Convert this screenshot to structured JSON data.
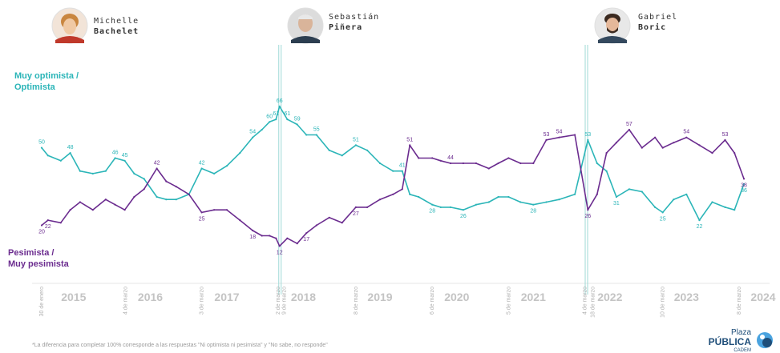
{
  "presidents": [
    {
      "first": "Michelle",
      "last": "Bachelet"
    },
    {
      "first": "Sebastián",
      "last": "Piñera"
    },
    {
      "first": "Gabriel",
      "last": "Boric"
    }
  ],
  "footnote": "*La diferencia para completar 100% corresponde a las respuestas \"Ni optimista ni pesimista\" y \"No sabe, no responde\"",
  "brand": {
    "line1": "Plaza",
    "line2": "PÚBLICA",
    "line3": "CADEM"
  },
  "colors": {
    "optimista": "#2bb5b8",
    "pesimista": "#6b2c8f",
    "divider": "#9fd9d6"
  },
  "chart_data": {
    "type": "line",
    "xlabel": "",
    "ylabel": "",
    "ylim": [
      5,
      70
    ],
    "x_range": [
      "2015-01-30",
      "2024-03-31"
    ],
    "years": [
      "2015",
      "2016",
      "2017",
      "2018",
      "2019",
      "2020",
      "2021",
      "2022",
      "2023",
      "2024"
    ],
    "date_markers": [
      {
        "label": "30 de enero",
        "date": "2015-01-30"
      },
      {
        "label": "4 de marzo",
        "date": "2016-03-04"
      },
      {
        "label": "3 de marzo",
        "date": "2017-03-03"
      },
      {
        "label": "2 de marzo",
        "date": "2018-03-02"
      },
      {
        "label": "9 de marzo",
        "date": "2018-03-09"
      },
      {
        "label": "8 de marzo",
        "date": "2019-03-08"
      },
      {
        "label": "6 de marzo",
        "date": "2020-03-06"
      },
      {
        "label": "5 de marzo",
        "date": "2021-03-05"
      },
      {
        "label": "4 de marzo",
        "date": "2022-03-04"
      },
      {
        "label": "18 de marzo",
        "date": "2022-03-18"
      },
      {
        "label": "10 de marzo",
        "date": "2023-03-10"
      },
      {
        "label": "8 de marzo",
        "date": "2024-03-08"
      }
    ],
    "transitions": [
      "2018-03-11",
      "2022-03-11"
    ],
    "series": [
      {
        "name": "Muy optimista / Optimista",
        "color": "#2bb5b8",
        "points": [
          [
            "2015-01-30",
            50
          ],
          [
            "2015-03-01",
            47
          ],
          [
            "2015-05-01",
            45
          ],
          [
            "2015-06-15",
            48
          ],
          [
            "2015-08-01",
            41
          ],
          [
            "2015-10-01",
            40
          ],
          [
            "2015-12-01",
            41
          ],
          [
            "2016-01-15",
            46
          ],
          [
            "2016-03-01",
            45
          ],
          [
            "2016-04-15",
            40
          ],
          [
            "2016-06-01",
            38
          ],
          [
            "2016-08-01",
            31
          ],
          [
            "2016-09-15",
            30
          ],
          [
            "2016-11-01",
            30
          ],
          [
            "2017-01-01",
            32
          ],
          [
            "2017-03-03",
            42
          ],
          [
            "2017-05-01",
            40
          ],
          [
            "2017-07-01",
            43
          ],
          [
            "2017-09-01",
            48
          ],
          [
            "2017-11-01",
            54
          ],
          [
            "2017-12-15",
            57
          ],
          [
            "2018-01-20",
            60
          ],
          [
            "2018-02-20",
            61
          ],
          [
            "2018-03-09",
            66
          ],
          [
            "2018-04-15",
            61
          ],
          [
            "2018-06-01",
            59
          ],
          [
            "2018-07-15",
            55
          ],
          [
            "2018-09-01",
            55
          ],
          [
            "2018-11-01",
            49
          ],
          [
            "2019-01-01",
            47
          ],
          [
            "2019-03-08",
            51
          ],
          [
            "2019-05-01",
            49
          ],
          [
            "2019-07-01",
            44
          ],
          [
            "2019-09-01",
            41
          ],
          [
            "2019-10-15",
            41
          ],
          [
            "2019-11-20",
            32
          ],
          [
            "2020-01-01",
            31
          ],
          [
            "2020-03-06",
            28
          ],
          [
            "2020-04-15",
            27
          ],
          [
            "2020-06-01",
            27
          ],
          [
            "2020-08-01",
            26
          ],
          [
            "2020-10-01",
            28
          ],
          [
            "2020-12-01",
            29
          ],
          [
            "2021-01-15",
            31
          ],
          [
            "2021-03-05",
            31
          ],
          [
            "2021-05-01",
            29
          ],
          [
            "2021-07-01",
            28
          ],
          [
            "2021-09-01",
            29
          ],
          [
            "2021-11-01",
            30
          ],
          [
            "2022-01-15",
            32
          ],
          [
            "2022-03-18",
            53
          ],
          [
            "2022-05-01",
            44
          ],
          [
            "2022-06-15",
            41
          ],
          [
            "2022-08-01",
            31
          ],
          [
            "2022-10-01",
            34
          ],
          [
            "2022-12-01",
            33
          ],
          [
            "2023-02-01",
            27
          ],
          [
            "2023-03-10",
            25
          ],
          [
            "2023-05-01",
            30
          ],
          [
            "2023-07-01",
            32
          ],
          [
            "2023-09-01",
            22
          ],
          [
            "2023-11-01",
            29
          ],
          [
            "2024-01-01",
            27
          ],
          [
            "2024-02-15",
            26
          ],
          [
            "2024-03-31",
            36
          ]
        ]
      },
      {
        "name": "Pesimista / Muy pesimista",
        "color": "#6b2c8f",
        "points": [
          [
            "2015-01-30",
            20
          ],
          [
            "2015-03-01",
            22
          ],
          [
            "2015-05-01",
            21
          ],
          [
            "2015-06-15",
            26
          ],
          [
            "2015-08-01",
            29
          ],
          [
            "2015-10-01",
            26
          ],
          [
            "2015-12-01",
            30
          ],
          [
            "2016-01-15",
            28
          ],
          [
            "2016-03-01",
            26
          ],
          [
            "2016-04-15",
            31
          ],
          [
            "2016-06-01",
            34
          ],
          [
            "2016-08-01",
            42
          ],
          [
            "2016-09-15",
            37
          ],
          [
            "2016-11-01",
            35
          ],
          [
            "2017-01-01",
            32
          ],
          [
            "2017-03-03",
            25
          ],
          [
            "2017-05-01",
            26
          ],
          [
            "2017-07-01",
            26
          ],
          [
            "2017-09-01",
            22
          ],
          [
            "2017-11-01",
            18
          ],
          [
            "2017-12-15",
            16
          ],
          [
            "2018-01-20",
            16
          ],
          [
            "2018-02-20",
            15
          ],
          [
            "2018-03-09",
            12
          ],
          [
            "2018-04-15",
            15
          ],
          [
            "2018-06-01",
            13
          ],
          [
            "2018-07-15",
            17
          ],
          [
            "2018-09-01",
            20
          ],
          [
            "2018-11-01",
            23
          ],
          [
            "2019-01-01",
            21
          ],
          [
            "2019-03-08",
            27
          ],
          [
            "2019-05-01",
            27
          ],
          [
            "2019-07-01",
            30
          ],
          [
            "2019-09-01",
            32
          ],
          [
            "2019-10-15",
            34
          ],
          [
            "2019-11-20",
            51
          ],
          [
            "2020-01-01",
            46
          ],
          [
            "2020-03-06",
            46
          ],
          [
            "2020-04-15",
            45
          ],
          [
            "2020-06-01",
            44
          ],
          [
            "2020-08-01",
            44
          ],
          [
            "2020-10-01",
            44
          ],
          [
            "2020-12-01",
            42
          ],
          [
            "2021-01-15",
            44
          ],
          [
            "2021-03-05",
            46
          ],
          [
            "2021-05-01",
            44
          ],
          [
            "2021-07-01",
            44
          ],
          [
            "2021-09-01",
            53
          ],
          [
            "2021-11-01",
            54
          ],
          [
            "2022-01-15",
            55
          ],
          [
            "2022-03-18",
            26
          ],
          [
            "2022-05-01",
            32
          ],
          [
            "2022-06-15",
            48
          ],
          [
            "2022-08-01",
            52
          ],
          [
            "2022-10-01",
            57
          ],
          [
            "2022-12-01",
            50
          ],
          [
            "2023-02-01",
            54
          ],
          [
            "2023-03-10",
            50
          ],
          [
            "2023-05-01",
            52
          ],
          [
            "2023-07-01",
            54
          ],
          [
            "2023-09-01",
            51
          ],
          [
            "2023-11-01",
            48
          ],
          [
            "2024-01-01",
            53
          ],
          [
            "2024-02-15",
            48
          ],
          [
            "2024-03-31",
            38
          ]
        ]
      }
    ],
    "data_labels": [
      {
        "series": 0,
        "date": "2015-01-30",
        "value": 50
      },
      {
        "series": 0,
        "date": "2015-06-15",
        "value": 48
      },
      {
        "series": 0,
        "date": "2016-01-15",
        "value": 46
      },
      {
        "series": 0,
        "date": "2016-03-01",
        "value": 45
      },
      {
        "series": 0,
        "date": "2017-03-03",
        "value": 42
      },
      {
        "series": 0,
        "date": "2017-11-01",
        "value": 54
      },
      {
        "series": 0,
        "date": "2018-01-20",
        "value": 60
      },
      {
        "series": 0,
        "date": "2018-02-20",
        "value": 61
      },
      {
        "series": 0,
        "date": "2018-03-09",
        "value": 66
      },
      {
        "series": 0,
        "date": "2018-04-15",
        "value": 61
      },
      {
        "series": 0,
        "date": "2018-06-01",
        "value": 59
      },
      {
        "series": 0,
        "date": "2018-09-01",
        "value": 55
      },
      {
        "series": 0,
        "date": "2019-03-08",
        "value": 51
      },
      {
        "series": 0,
        "date": "2019-10-15",
        "value": 41
      },
      {
        "series": 0,
        "date": "2020-03-06",
        "value": 28
      },
      {
        "series": 0,
        "date": "2020-08-01",
        "value": 26
      },
      {
        "series": 0,
        "date": "2021-07-01",
        "value": 28
      },
      {
        "series": 0,
        "date": "2022-03-18",
        "value": 53
      },
      {
        "series": 0,
        "date": "2022-08-01",
        "value": 31
      },
      {
        "series": 0,
        "date": "2023-03-10",
        "value": 25
      },
      {
        "series": 0,
        "date": "2023-09-01",
        "value": 22
      },
      {
        "series": 0,
        "date": "2024-03-31",
        "value": 36
      },
      {
        "series": 1,
        "date": "2015-01-30",
        "value": 20
      },
      {
        "series": 1,
        "date": "2015-03-01",
        "value": 22
      },
      {
        "series": 1,
        "date": "2016-08-01",
        "value": 42
      },
      {
        "series": 1,
        "date": "2017-03-03",
        "value": 25
      },
      {
        "series": 1,
        "date": "2017-11-01",
        "value": 18
      },
      {
        "series": 1,
        "date": "2018-03-09",
        "value": 12
      },
      {
        "series": 1,
        "date": "2018-07-15",
        "value": 17
      },
      {
        "series": 1,
        "date": "2019-03-08",
        "value": 27
      },
      {
        "series": 1,
        "date": "2019-11-20",
        "value": 51
      },
      {
        "series": 1,
        "date": "2020-06-01",
        "value": 44
      },
      {
        "series": 1,
        "date": "2021-09-01",
        "value": 53
      },
      {
        "series": 1,
        "date": "2021-11-01",
        "value": 54
      },
      {
        "series": 1,
        "date": "2022-03-18",
        "value": 26
      },
      {
        "series": 1,
        "date": "2022-10-01",
        "value": 57
      },
      {
        "series": 1,
        "date": "2023-07-01",
        "value": 54
      },
      {
        "series": 1,
        "date": "2024-01-01",
        "value": 53
      },
      {
        "series": 1,
        "date": "2024-03-31",
        "value": 38
      }
    ]
  }
}
